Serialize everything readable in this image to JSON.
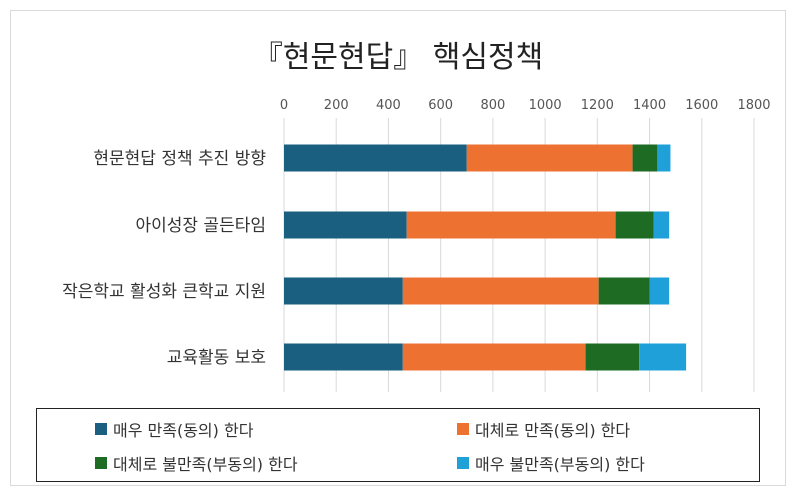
{
  "chart_data": {
    "type": "bar",
    "orientation": "horizontal",
    "stacked": true,
    "title": "『현문현답』 핵심정책",
    "xlim": [
      0,
      1800
    ],
    "xticks": [
      0,
      200,
      400,
      600,
      800,
      1000,
      1200,
      1400,
      1600,
      1800
    ],
    "grid": true,
    "legend_position": "bottom",
    "categories": [
      "현문현답 정책 추진 방향",
      "아이성장 골든타임",
      "작은학교 활성화 큰학교 지원",
      "교육활동 보호"
    ],
    "series": [
      {
        "name": "매우 만족(동의) 한다",
        "color": "#1a5f80",
        "values": [
          700,
          470,
          455,
          455
        ]
      },
      {
        "name": "대체로 만족(동의) 한다",
        "color": "#ed7232",
        "values": [
          635,
          800,
          750,
          700
        ]
      },
      {
        "name": "대체로 불만족(부동의) 한다",
        "color": "#1e6b23",
        "values": [
          95,
          145,
          195,
          205
        ]
      },
      {
        "name": "매우 불만족(부동의) 한다",
        "color": "#1fa0d8",
        "values": [
          50,
          60,
          75,
          180
        ]
      }
    ]
  }
}
